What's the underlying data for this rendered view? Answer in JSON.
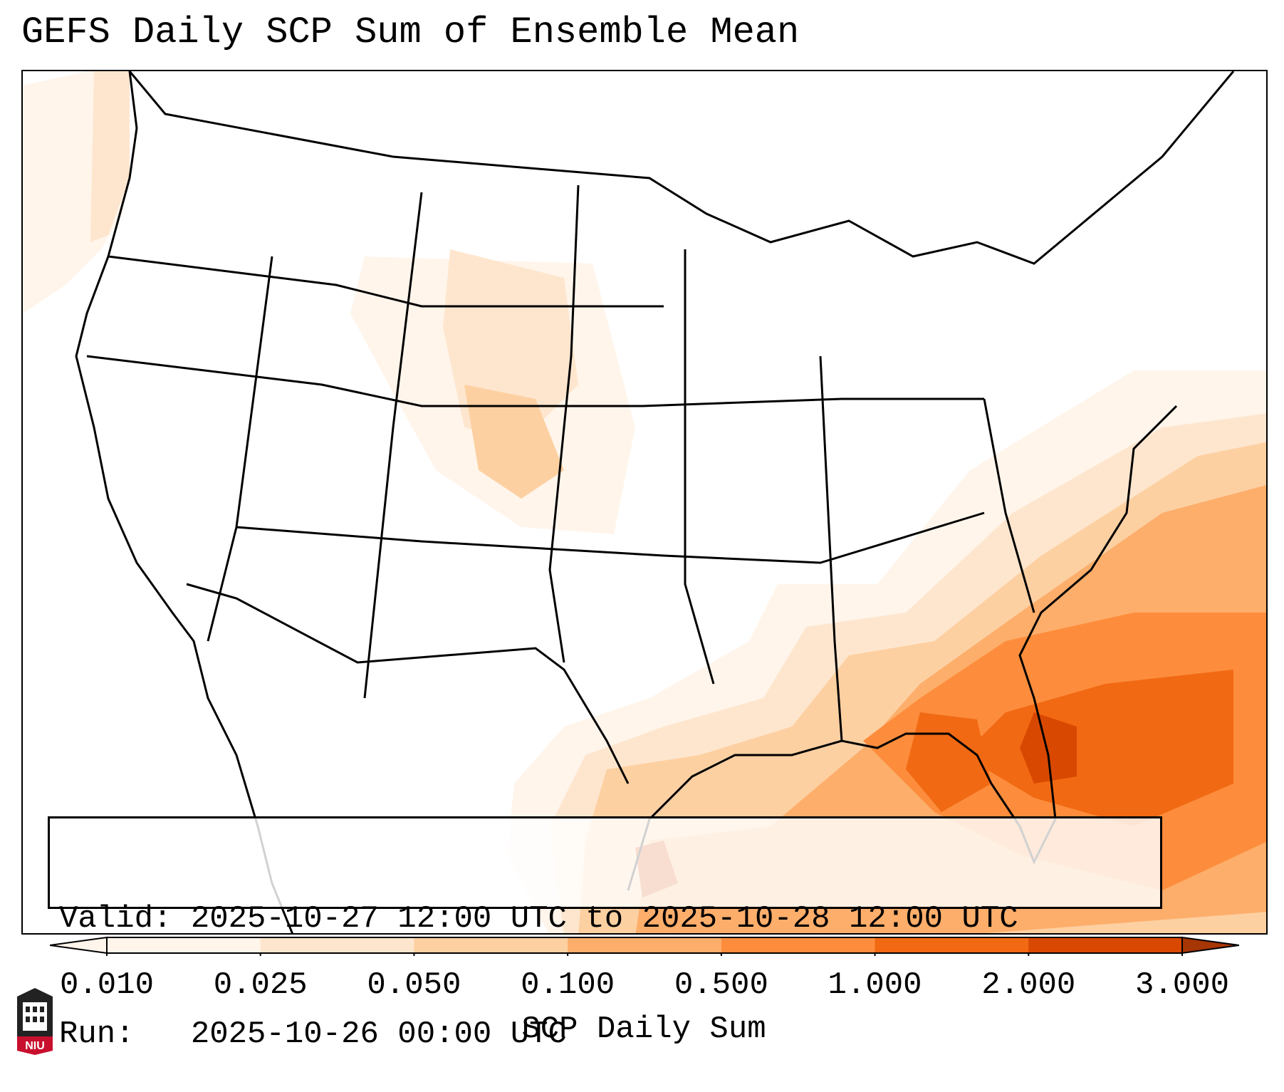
{
  "title": "GEFS Daily SCP Sum of Ensemble Mean",
  "info": {
    "valid_label": "Valid:",
    "valid_value": "2025-10-27 12:00 UTC to 2025-10-28 12:00 UTC",
    "run_label": "Run:",
    "run_value": "2025-10-26 00:00 UTC"
  },
  "colorbar": {
    "label": "SCP Daily Sum",
    "ticks": [
      "0.010",
      "0.025",
      "0.050",
      "0.100",
      "0.500",
      "1.000",
      "2.000",
      "3.000"
    ],
    "colors": [
      "#fff5eb",
      "#fee6ce",
      "#fdd0a2",
      "#fdae6b",
      "#fd8d3c",
      "#f16913",
      "#d94801",
      "#a63603"
    ],
    "extend": "both"
  },
  "map": {
    "projection": "Lambert Conformal Conic",
    "region": "CONUS",
    "max_region": "Gulf of Mexico / Florida / Southeast coast"
  },
  "logo": {
    "text": "NIU",
    "icon": "niu-logo-icon"
  }
}
